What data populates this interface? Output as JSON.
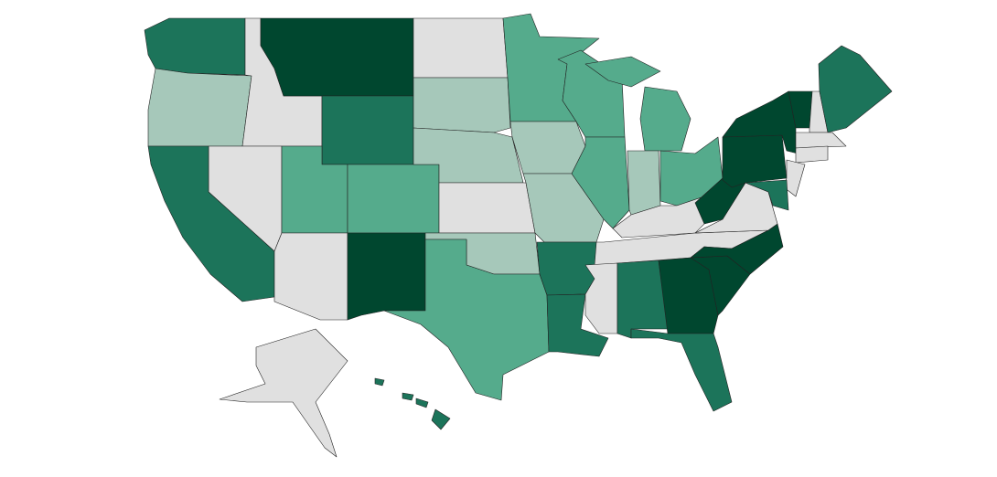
{
  "map": {
    "palette": [
      "#e0e0e0",
      "#a6c8ba",
      "#55ab8c",
      "#1c745a",
      "#00472f"
    ]
  }
}
